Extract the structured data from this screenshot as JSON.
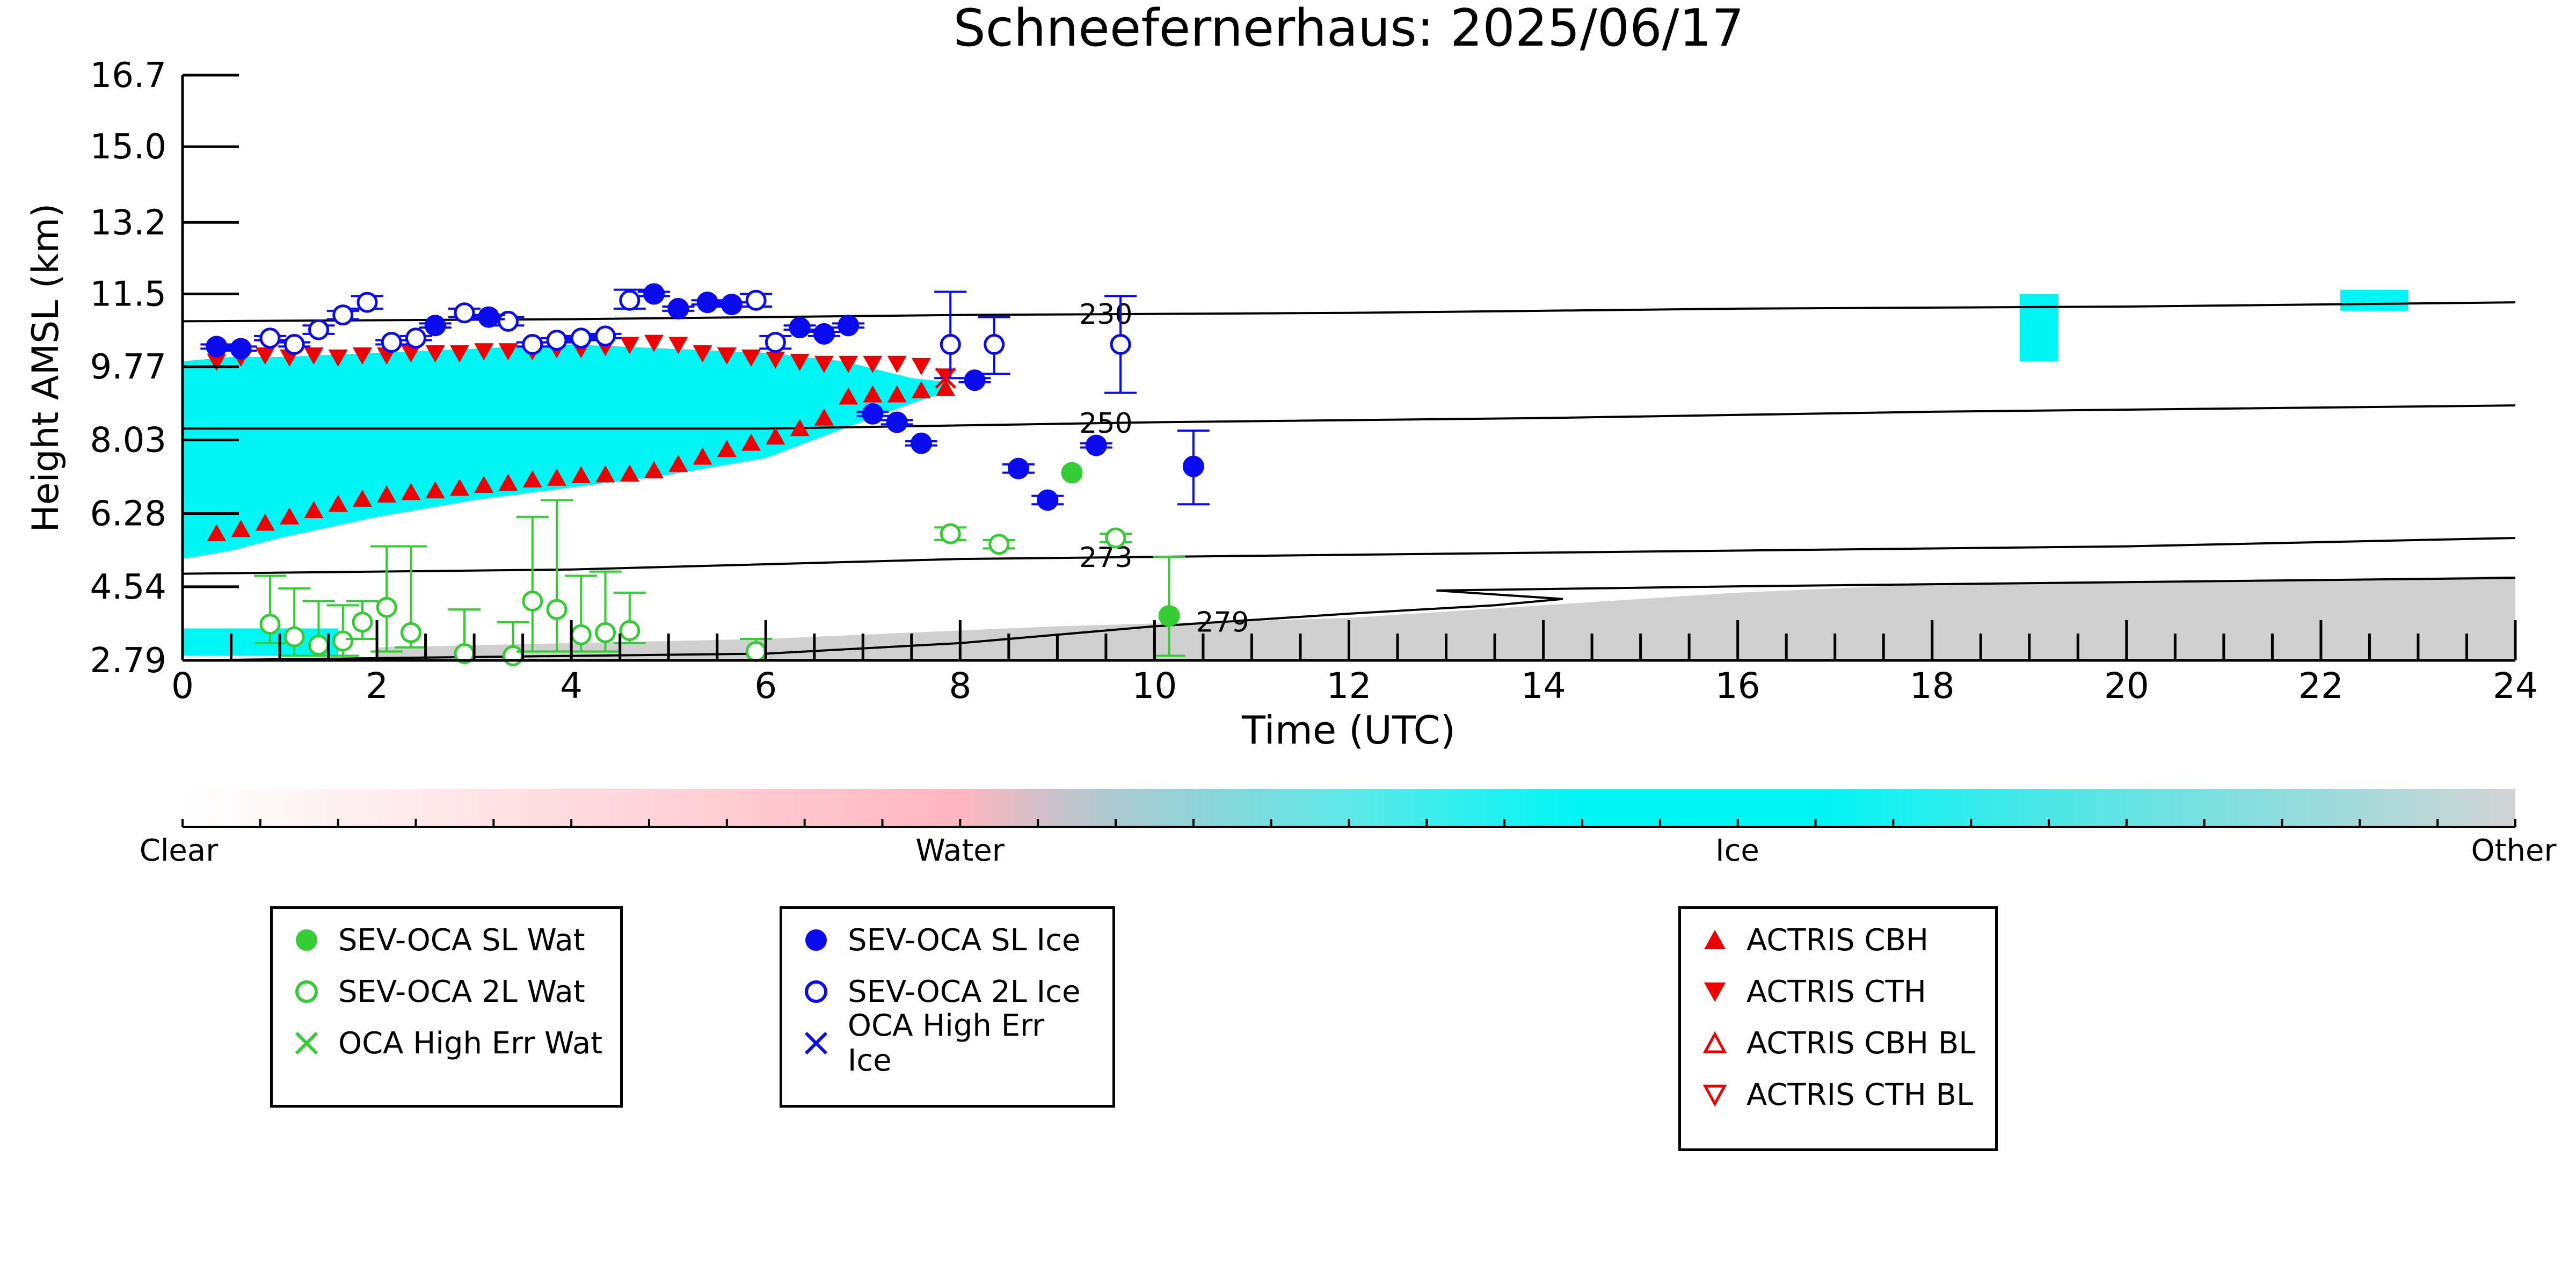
{
  "chart_data": {
    "type": "scatter",
    "title": "Schneefernerhaus: 2025/06/17",
    "xlabel": "Time (UTC)",
    "ylabel": "Height AMSL (km)",
    "xlim": [
      0,
      24
    ],
    "ylim": [
      2.79,
      16.7
    ],
    "xticks": [
      "0",
      "2",
      "4",
      "6",
      "8",
      "10",
      "12",
      "14",
      "16",
      "18",
      "20",
      "22",
      "24"
    ],
    "yticks": [
      "2.79",
      "4.54",
      "6.28",
      "8.03",
      "9.77",
      "11.5",
      "13.2",
      "15.0",
      "16.7"
    ],
    "colors": {
      "wat": "#33cc33",
      "ice": "#0a0aee",
      "actris": "#ee0000",
      "ice_cloud": "#00f5f5",
      "other": "#c8c8c8"
    },
    "colorbar": {
      "labels": [
        "Clear",
        "Water",
        "Ice",
        "Other"
      ]
    },
    "contours": [
      {
        "label": "230",
        "points": [
          [
            0,
            10.85
          ],
          [
            4,
            10.9
          ],
          [
            8,
            11.0
          ],
          [
            12,
            11.05
          ],
          [
            16,
            11.15
          ],
          [
            20,
            11.2
          ],
          [
            24,
            11.3
          ]
        ]
      },
      {
        "label": "250",
        "points": [
          [
            0,
            8.3
          ],
          [
            6,
            8.3
          ],
          [
            10,
            8.45
          ],
          [
            14,
            8.55
          ],
          [
            18,
            8.7
          ],
          [
            24,
            8.85
          ]
        ]
      },
      {
        "label": "273",
        "points": [
          [
            0,
            4.85
          ],
          [
            4,
            4.95
          ],
          [
            8,
            5.2
          ],
          [
            12,
            5.3
          ],
          [
            16,
            5.4
          ],
          [
            20,
            5.5
          ],
          [
            24,
            5.7
          ]
        ]
      },
      {
        "label": "279",
        "points": [
          [
            0,
            2.79
          ],
          [
            6,
            2.95
          ],
          [
            8,
            3.2
          ],
          [
            10,
            3.6
          ],
          [
            12,
            3.9
          ],
          [
            13.5,
            4.1
          ],
          [
            14.2,
            4.25
          ],
          [
            12.9,
            4.45
          ],
          [
            16,
            4.55
          ],
          [
            24,
            4.75
          ]
        ]
      }
    ],
    "sev_sl_wat": [
      [
        9.15,
        7.25
      ],
      [
        10.15,
        3.85
      ]
    ],
    "sev_sl_wat_err": [
      [
        10.15,
        2.9,
        5.25
      ]
    ],
    "sev_2l_wat": [
      {
        "x": 0.9,
        "y": 3.65,
        "lo": 3.2,
        "hi": 4.8
      },
      {
        "x": 1.15,
        "y": 3.35,
        "lo": 2.9,
        "hi": 4.5
      },
      {
        "x": 1.4,
        "y": 3.15,
        "lo": 2.9,
        "hi": 4.2
      },
      {
        "x": 1.65,
        "y": 3.25,
        "lo": 2.9,
        "hi": 4.1
      },
      {
        "x": 1.85,
        "y": 3.7,
        "lo": 3.3,
        "hi": 4.2
      },
      {
        "x": 2.1,
        "y": 4.05,
        "lo": 3.0,
        "hi": 5.5
      },
      {
        "x": 2.35,
        "y": 3.45,
        "lo": 3.1,
        "hi": 5.5
      },
      {
        "x": 2.9,
        "y": 2.95,
        "lo": 2.8,
        "hi": 4.0
      },
      {
        "x": 3.4,
        "y": 2.9,
        "lo": 2.8,
        "hi": 3.7
      },
      {
        "x": 3.6,
        "y": 4.2,
        "lo": 3.0,
        "hi": 6.2
      },
      {
        "x": 3.85,
        "y": 4.0,
        "lo": 3.0,
        "hi": 6.6
      },
      {
        "x": 4.1,
        "y": 3.4,
        "lo": 3.0,
        "hi": 4.8
      },
      {
        "x": 4.35,
        "y": 3.45,
        "lo": 3.0,
        "hi": 4.9
      },
      {
        "x": 4.6,
        "y": 3.5,
        "lo": 3.2,
        "hi": 4.4
      },
      {
        "x": 5.9,
        "y": 3.0,
        "lo": 2.8,
        "hi": 3.3
      },
      {
        "x": 7.9,
        "y": 5.8,
        "lo": 5.65,
        "hi": 5.95
      },
      {
        "x": 8.4,
        "y": 5.55,
        "lo": 5.45,
        "hi": 5.65
      },
      {
        "x": 9.6,
        "y": 5.7,
        "lo": 5.6,
        "hi": 5.8
      }
    ],
    "sev_sl_ice": [
      {
        "x": 0.35,
        "y": 10.25,
        "lo": 10.2,
        "hi": 10.3
      },
      {
        "x": 0.6,
        "y": 10.2,
        "lo": 10.15,
        "hi": 10.25
      },
      {
        "x": 2.6,
        "y": 10.75,
        "lo": 10.7,
        "hi": 10.8
      },
      {
        "x": 3.15,
        "y": 10.95,
        "lo": 10.9,
        "hi": 11.0
      },
      {
        "x": 4.85,
        "y": 11.5,
        "lo": 11.45,
        "hi": 11.55
      },
      {
        "x": 5.1,
        "y": 11.15,
        "lo": 11.1,
        "hi": 11.2
      },
      {
        "x": 5.4,
        "y": 11.3,
        "lo": 11.25,
        "hi": 11.35
      },
      {
        "x": 5.65,
        "y": 11.25,
        "lo": 11.2,
        "hi": 11.3
      },
      {
        "x": 6.35,
        "y": 10.7,
        "lo": 10.65,
        "hi": 10.75
      },
      {
        "x": 6.6,
        "y": 10.55,
        "lo": 10.5,
        "hi": 10.6
      },
      {
        "x": 6.85,
        "y": 10.75,
        "lo": 10.7,
        "hi": 10.8
      },
      {
        "x": 7.1,
        "y": 8.65,
        "lo": 8.6,
        "hi": 8.7
      },
      {
        "x": 7.35,
        "y": 8.45,
        "lo": 8.4,
        "hi": 8.5
      },
      {
        "x": 7.6,
        "y": 7.95,
        "lo": 7.9,
        "hi": 8.0
      },
      {
        "x": 8.15,
        "y": 9.45,
        "lo": 9.4,
        "hi": 9.5
      },
      {
        "x": 8.6,
        "y": 7.35,
        "lo": 7.25,
        "hi": 7.45
      },
      {
        "x": 8.9,
        "y": 6.6,
        "lo": 6.5,
        "hi": 6.7
      },
      {
        "x": 9.4,
        "y": 7.9,
        "lo": 7.85,
        "hi": 7.95
      },
      {
        "x": 10.4,
        "y": 7.4,
        "lo": 6.5,
        "hi": 8.25
      }
    ],
    "sev_2l_ice": [
      {
        "x": 0.9,
        "y": 10.45,
        "lo": 10.4,
        "hi": 10.5
      },
      {
        "x": 1.15,
        "y": 10.3,
        "lo": 10.25,
        "hi": 10.35
      },
      {
        "x": 1.4,
        "y": 10.65,
        "lo": 10.55,
        "hi": 10.75
      },
      {
        "x": 1.65,
        "y": 11.0,
        "lo": 10.9,
        "hi": 11.1
      },
      {
        "x": 1.9,
        "y": 11.3,
        "lo": 11.15,
        "hi": 11.45
      },
      {
        "x": 2.15,
        "y": 10.35,
        "lo": 10.3,
        "hi": 10.4
      },
      {
        "x": 2.4,
        "y": 10.45,
        "lo": 10.4,
        "hi": 10.5
      },
      {
        "x": 2.9,
        "y": 11.05,
        "lo": 10.95,
        "hi": 11.15
      },
      {
        "x": 3.35,
        "y": 10.85,
        "lo": 10.75,
        "hi": 10.95
      },
      {
        "x": 3.6,
        "y": 10.3,
        "lo": 10.25,
        "hi": 10.35
      },
      {
        "x": 3.85,
        "y": 10.4,
        "lo": 10.35,
        "hi": 10.45
      },
      {
        "x": 4.1,
        "y": 10.45,
        "lo": 10.4,
        "hi": 10.5
      },
      {
        "x": 4.35,
        "y": 10.5,
        "lo": 10.45,
        "hi": 10.55
      },
      {
        "x": 4.6,
        "y": 11.35,
        "lo": 11.15,
        "hi": 11.6
      },
      {
        "x": 5.9,
        "y": 11.35,
        "lo": 11.2,
        "hi": 11.5
      },
      {
        "x": 6.1,
        "y": 10.35,
        "lo": 10.2,
        "hi": 10.5
      },
      {
        "x": 7.9,
        "y": 10.3,
        "lo": 9.5,
        "hi": 11.55
      },
      {
        "x": 8.35,
        "y": 10.3,
        "lo": 9.6,
        "hi": 10.95
      },
      {
        "x": 9.65,
        "y": 10.3,
        "lo": 9.15,
        "hi": 11.45
      }
    ],
    "actris_cbh": [
      [
        0.35,
        5.8
      ],
      [
        0.6,
        5.9
      ],
      [
        0.85,
        6.05
      ],
      [
        1.1,
        6.2
      ],
      [
        1.35,
        6.35
      ],
      [
        1.6,
        6.5
      ],
      [
        1.85,
        6.62
      ],
      [
        2.1,
        6.72
      ],
      [
        2.35,
        6.78
      ],
      [
        2.6,
        6.82
      ],
      [
        2.85,
        6.88
      ],
      [
        3.1,
        6.95
      ],
      [
        3.35,
        7.0
      ],
      [
        3.6,
        7.08
      ],
      [
        3.85,
        7.12
      ],
      [
        4.1,
        7.18
      ],
      [
        4.35,
        7.2
      ],
      [
        4.6,
        7.22
      ],
      [
        4.85,
        7.3
      ],
      [
        5.1,
        7.45
      ],
      [
        5.35,
        7.62
      ],
      [
        5.6,
        7.8
      ],
      [
        5.85,
        7.95
      ],
      [
        6.1,
        8.1
      ],
      [
        6.35,
        8.3
      ],
      [
        6.6,
        8.55
      ],
      [
        6.85,
        9.05
      ],
      [
        7.1,
        9.1
      ],
      [
        7.35,
        9.1
      ],
      [
        7.6,
        9.2
      ],
      [
        7.85,
        9.25
      ]
    ],
    "actris_cth": [
      [
        0.35,
        9.9
      ],
      [
        0.6,
        10.0
      ],
      [
        0.85,
        10.05
      ],
      [
        1.1,
        10.0
      ],
      [
        1.35,
        10.05
      ],
      [
        1.6,
        10.0
      ],
      [
        1.85,
        10.05
      ],
      [
        2.1,
        10.05
      ],
      [
        2.35,
        10.1
      ],
      [
        2.6,
        10.1
      ],
      [
        2.85,
        10.1
      ],
      [
        3.1,
        10.15
      ],
      [
        3.35,
        10.15
      ],
      [
        3.6,
        10.15
      ],
      [
        3.85,
        10.2
      ],
      [
        4.1,
        10.2
      ],
      [
        4.35,
        10.25
      ],
      [
        4.6,
        10.3
      ],
      [
        4.85,
        10.35
      ],
      [
        5.1,
        10.3
      ],
      [
        5.35,
        10.1
      ],
      [
        5.6,
        10.05
      ],
      [
        5.85,
        10.0
      ],
      [
        6.1,
        9.95
      ],
      [
        6.35,
        9.9
      ],
      [
        6.6,
        9.85
      ],
      [
        6.85,
        9.85
      ],
      [
        7.1,
        9.85
      ],
      [
        7.35,
        9.85
      ],
      [
        7.6,
        9.8
      ],
      [
        7.85,
        9.55
      ]
    ],
    "oca_high_err_ice": [
      [
        7.85,
        9.5
      ]
    ],
    "legend1": [
      "SEV-OCA SL Wat",
      "SEV-OCA 2L Wat",
      "OCA High Err Wat"
    ],
    "legend2": [
      "SEV-OCA SL Ice",
      "SEV-OCA 2L Ice",
      "OCA High Err Ice"
    ],
    "legend3": [
      "ACTRIS CBH",
      "ACTRIS CTH",
      "ACTRIS CBH BL",
      "ACTRIS CTH BL"
    ]
  }
}
